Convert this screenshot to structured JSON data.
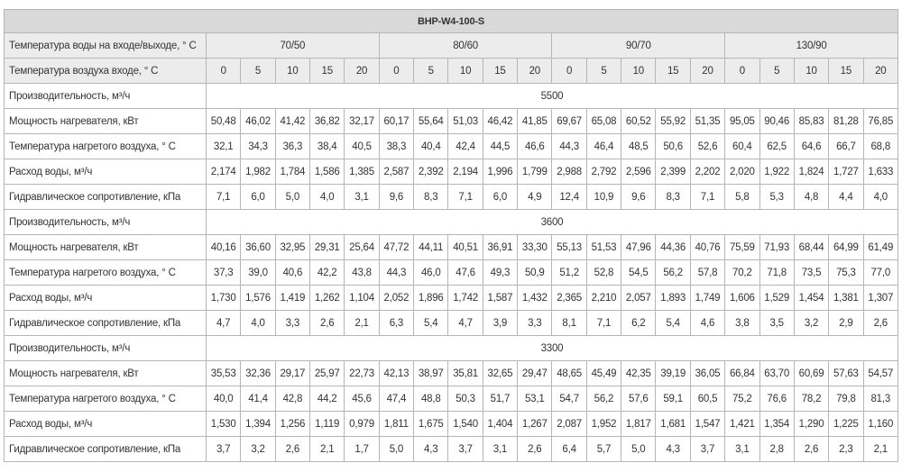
{
  "title": "BHP-W4-100-S",
  "water_temp_label": "Температура воды на входе/выходе, ° С",
  "water_temps": [
    "70/50",
    "80/60",
    "90/70",
    "130/90"
  ],
  "air_temp_label": "Температура воздуха входе, ° С",
  "air_temps": [
    "0",
    "5",
    "10",
    "15",
    "20"
  ],
  "sections": [
    {
      "capacity_label": "Производительность, м³/ч",
      "capacity": "5500",
      "rows": [
        {
          "label": "Мощность нагревателя, кВт",
          "values": [
            "50,48",
            "46,02",
            "41,42",
            "36,82",
            "32,17",
            "60,17",
            "55,64",
            "51,03",
            "46,42",
            "41,85",
            "69,67",
            "65,08",
            "60,52",
            "55,92",
            "51,35",
            "95,05",
            "90,46",
            "85,83",
            "81,28",
            "76,85"
          ]
        },
        {
          "label": "Температура нагретого воздуха, ° С",
          "values": [
            "32,1",
            "34,3",
            "36,3",
            "38,4",
            "40,5",
            "38,3",
            "40,4",
            "42,4",
            "44,5",
            "46,6",
            "44,3",
            "46,4",
            "48,5",
            "50,6",
            "52,6",
            "60,4",
            "62,5",
            "64,6",
            "66,7",
            "68,8"
          ]
        },
        {
          "label": "Расход воды, м³/ч",
          "values": [
            "2,174",
            "1,982",
            "1,784",
            "1,586",
            "1,385",
            "2,587",
            "2,392",
            "2,194",
            "1,996",
            "1,799",
            "2,988",
            "2,792",
            "2,596",
            "2,399",
            "2,202",
            "2,020",
            "1,922",
            "1,824",
            "1,727",
            "1,633"
          ]
        },
        {
          "label": "Гидравлическое сопротивление, кПа",
          "values": [
            "7,1",
            "6,0",
            "5,0",
            "4,0",
            "3,1",
            "9,6",
            "8,3",
            "7,1",
            "6,0",
            "4,9",
            "12,4",
            "10,9",
            "9,6",
            "8,3",
            "7,1",
            "5,8",
            "5,3",
            "4,8",
            "4,4",
            "4,0"
          ]
        }
      ]
    },
    {
      "capacity_label": "Производительность, м³/ч",
      "capacity": "3600",
      "rows": [
        {
          "label": "Мощность нагревателя, кВт",
          "values": [
            "40,16",
            "36,60",
            "32,95",
            "29,31",
            "25,64",
            "47,72",
            "44,11",
            "40,51",
            "36,91",
            "33,30",
            "55,13",
            "51,53",
            "47,96",
            "44,36",
            "40,76",
            "75,59",
            "71,93",
            "68,44",
            "64,99",
            "61,49"
          ]
        },
        {
          "label": "Температура нагретого воздуха, ° С",
          "values": [
            "37,3",
            "39,0",
            "40,6",
            "42,2",
            "43,8",
            "44,3",
            "46,0",
            "47,6",
            "49,3",
            "50,9",
            "51,2",
            "52,8",
            "54,5",
            "56,2",
            "57,8",
            "70,2",
            "71,8",
            "73,5",
            "75,3",
            "77,0"
          ]
        },
        {
          "label": "Расход воды, м³/ч",
          "values": [
            "1,730",
            "1,576",
            "1,419",
            "1,262",
            "1,104",
            "2,052",
            "1,896",
            "1,742",
            "1,587",
            "1,432",
            "2,365",
            "2,210",
            "2,057",
            "1,893",
            "1,749",
            "1,606",
            "1,529",
            "1,454",
            "1,381",
            "1,307"
          ]
        },
        {
          "label": "Гидравлическое сопротивление, кПа",
          "values": [
            "4,7",
            "4,0",
            "3,3",
            "2,6",
            "2,1",
            "6,3",
            "5,4",
            "4,7",
            "3,9",
            "3,3",
            "8,1",
            "7,1",
            "6,2",
            "5,4",
            "4,6",
            "3,8",
            "3,5",
            "3,2",
            "2,9",
            "2,6"
          ]
        }
      ]
    },
    {
      "capacity_label": "Производительность, м³/ч",
      "capacity": "3300",
      "rows": [
        {
          "label": "Мощность нагревателя, кВт",
          "values": [
            "35,53",
            "32,36",
            "29,17",
            "25,97",
            "22,73",
            "42,13",
            "38,97",
            "35,81",
            "32,65",
            "29,47",
            "48,65",
            "45,49",
            "42,35",
            "39,19",
            "36,05",
            "66,84",
            "63,70",
            "60,69",
            "57,63",
            "54,57"
          ]
        },
        {
          "label": "Температура нагретого воздуха, ° С",
          "values": [
            "40,0",
            "41,4",
            "42,8",
            "44,2",
            "45,6",
            "47,4",
            "48,8",
            "50,3",
            "51,7",
            "53,1",
            "54,7",
            "56,2",
            "57,6",
            "59,1",
            "60,5",
            "75,2",
            "76,6",
            "78,2",
            "79,8",
            "81,3"
          ]
        },
        {
          "label": "Расход воды, м³/ч",
          "values": [
            "1,530",
            "1,394",
            "1,256",
            "1,119",
            "0,979",
            "1,811",
            "1,675",
            "1,540",
            "1,404",
            "1,267",
            "2,087",
            "1,952",
            "1,817",
            "1,681",
            "1,547",
            "1,421",
            "1,354",
            "1,290",
            "1,225",
            "1,160"
          ]
        },
        {
          "label": "Гидравлическое сопротивление, кПа",
          "values": [
            "3,7",
            "3,2",
            "2,6",
            "2,1",
            "1,7",
            "5,0",
            "4,3",
            "3,7",
            "3,1",
            "2,6",
            "6,4",
            "5,7",
            "5,0",
            "4,3",
            "3,7",
            "3,1",
            "2,8",
            "2,6",
            "2,3",
            "2,1"
          ]
        }
      ]
    }
  ]
}
